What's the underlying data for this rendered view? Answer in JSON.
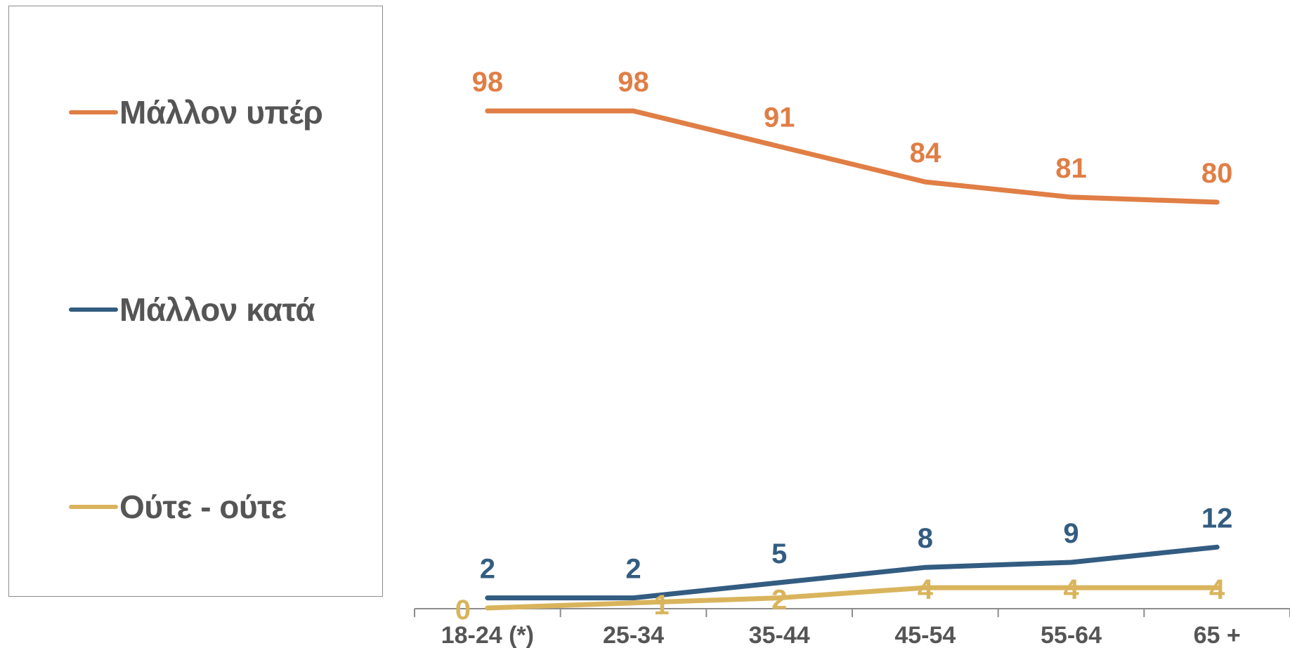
{
  "chart_data": {
    "type": "line",
    "categories": [
      "18-24 (*)",
      "25-34",
      "35-44",
      "45-54",
      "55-64",
      "65 +"
    ],
    "series": [
      {
        "name": "Μάλλον υπέρ",
        "color": "#E07E45",
        "values": [
          98,
          98,
          91,
          84,
          81,
          80
        ]
      },
      {
        "name": "Μάλλον κατά",
        "color": "#335C81",
        "values": [
          2,
          2,
          5,
          8,
          9,
          12
        ]
      },
      {
        "name": "Ούτε - ούτε",
        "color": "#D9B45C",
        "values": [
          0,
          1,
          2,
          4,
          4,
          4
        ]
      }
    ],
    "ylim": [
      0,
      100
    ],
    "grid": false,
    "legend_position": "left",
    "show_data_labels": true,
    "axis_color": "#8c8c8c",
    "label_color": "#555555"
  }
}
